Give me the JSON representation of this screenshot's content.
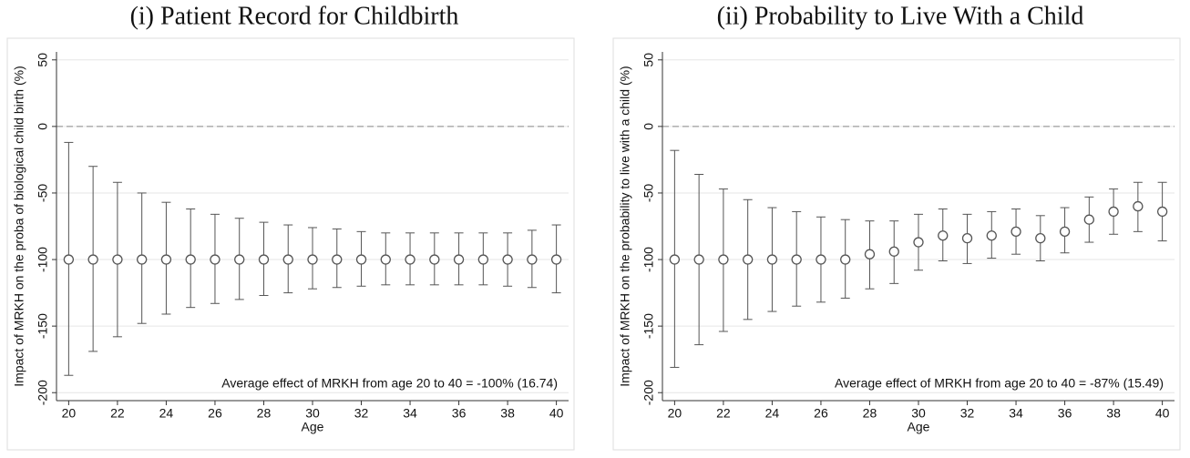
{
  "chart_data": [
    {
      "type": "errorbar",
      "title": "(i) Patient Record for Childbirth",
      "xlabel": "Age",
      "ylabel": "Impact of MRKH on the proba of biological child birth (%)",
      "annotation": "Average effect of MRKH from age 20 to 40  = -100% (16.74)",
      "x": [
        20,
        21,
        22,
        23,
        24,
        25,
        26,
        27,
        28,
        29,
        30,
        31,
        32,
        33,
        34,
        35,
        36,
        37,
        38,
        39,
        40
      ],
      "values": [
        -100,
        -100,
        -100,
        -100,
        -100,
        -100,
        -100,
        -100,
        -100,
        -100,
        -100,
        -100,
        -100,
        -100,
        -100,
        -100,
        -100,
        -100,
        -100,
        -100,
        -100
      ],
      "ci_low": [
        -187,
        -169,
        -158,
        -148,
        -141,
        -136,
        -133,
        -130,
        -127,
        -125,
        -122,
        -121,
        -120,
        -119,
        -119,
        -119,
        -119,
        -119,
        -120,
        -121,
        -125
      ],
      "ci_high": [
        -12,
        -30,
        -42,
        -50,
        -57,
        -62,
        -66,
        -69,
        -72,
        -74,
        -76,
        -77,
        -79,
        -80,
        -80,
        -80,
        -80,
        -80,
        -80,
        -78,
        -74
      ],
      "color": "#555555",
      "refline": 0,
      "xlim": [
        19.5,
        40.5
      ],
      "xticks": [
        20,
        22,
        24,
        26,
        28,
        30,
        32,
        34,
        36,
        38,
        40
      ],
      "ylim": [
        -206,
        56
      ],
      "yticks": [
        50,
        0,
        -50,
        -100,
        -150,
        -200
      ],
      "grid": true
    },
    {
      "type": "errorbar",
      "title": "(ii) Probability to Live With a Child",
      "xlabel": "Age",
      "ylabel": "Impact of MRKH on the probability to live with a child (%)",
      "annotation": "Average effect of MRKH from age 20 to 40  = -87% (15.49)",
      "x": [
        20,
        21,
        22,
        23,
        24,
        25,
        26,
        27,
        28,
        29,
        30,
        31,
        32,
        33,
        34,
        35,
        36,
        37,
        38,
        39,
        40
      ],
      "values": [
        -100,
        -100,
        -100,
        -100,
        -100,
        -100,
        -100,
        -100,
        -96,
        -94,
        -87,
        -82,
        -84,
        -82,
        -79,
        -84,
        -79,
        -70,
        -64,
        -60,
        -64
      ],
      "ci_low": [
        -181,
        -164,
        -154,
        -145,
        -139,
        -135,
        -132,
        -129,
        -122,
        -118,
        -108,
        -101,
        -103,
        -99,
        -96,
        -101,
        -95,
        -87,
        -81,
        -79,
        -86
      ],
      "ci_high": [
        -18,
        -36,
        -47,
        -55,
        -61,
        -64,
        -68,
        -70,
        -71,
        -71,
        -66,
        -62,
        -66,
        -64,
        -62,
        -67,
        -61,
        -53,
        -47,
        -42,
        -42
      ],
      "color": "#555555",
      "refline": 0,
      "xlim": [
        19.5,
        40.5
      ],
      "xticks": [
        20,
        22,
        24,
        26,
        28,
        30,
        32,
        34,
        36,
        38,
        40
      ],
      "ylim": [
        -206,
        56
      ],
      "yticks": [
        50,
        0,
        -50,
        -100,
        -150,
        -200
      ],
      "grid": true
    }
  ]
}
